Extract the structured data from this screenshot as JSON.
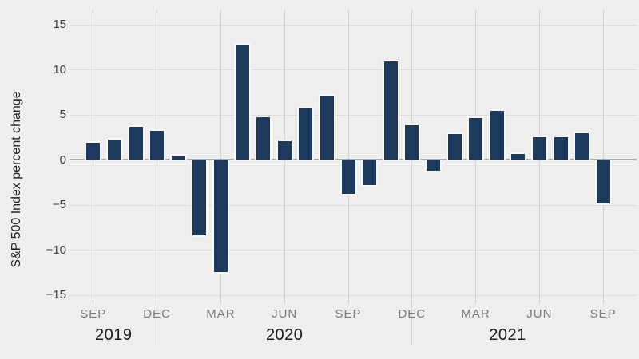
{
  "colors": {
    "background": "#efeeed",
    "bar_fill": "#1b3a5c",
    "bar_stroke": "#f8f8f6",
    "h_gridline": "#dcdcdb",
    "v_gridline": "#d3d3d2",
    "zero_line": "#a9a9a8",
    "y_tick_text": "#3d3d3d",
    "month_tick_text": "#7b7b7b",
    "year_text": "#1b1b1b"
  },
  "chart_data": {
    "type": "bar",
    "title": "",
    "xlabel": "",
    "ylabel": "S&P 500 Index percent change",
    "ylim": [
      -15,
      15
    ],
    "yticks": [
      15,
      10,
      5,
      0,
      -5,
      -10,
      -15
    ],
    "grid": true,
    "legend": "none",
    "categories": [
      "Sep 2019",
      "Oct 2019",
      "Nov 2019",
      "Dec 2019",
      "Jan 2020",
      "Feb 2020",
      "Mar 2020",
      "Apr 2020",
      "May 2020",
      "Jun 2020",
      "Jul 2020",
      "Aug 2020",
      "Sep 2020",
      "Oct 2020",
      "Nov 2020",
      "Dec 2020",
      "Jan 2021",
      "Feb 2021",
      "Mar 2021",
      "Apr 2021",
      "May 2021",
      "Jun 2021",
      "Jul 2021",
      "Aug 2021",
      "Sep 2021"
    ],
    "values": [
      1.9,
      2.2,
      3.6,
      3.2,
      0.4,
      -8.4,
      -12.5,
      12.7,
      4.7,
      2.0,
      5.7,
      7.1,
      -3.8,
      -2.8,
      10.9,
      3.8,
      -1.2,
      2.8,
      4.6,
      5.4,
      0.6,
      2.5,
      2.5,
      2.9,
      -4.9
    ],
    "x_tick_labels": [
      "SEP",
      "DEC",
      "MAR",
      "JUN",
      "SEP",
      "DEC",
      "MAR",
      "JUN",
      "SEP"
    ],
    "x_tick_every_n_bars": 3,
    "year_labels": [
      "2019",
      "2020",
      "2021"
    ],
    "year_separator_after": [
      "Dec 2019",
      "Dec 2020"
    ]
  }
}
